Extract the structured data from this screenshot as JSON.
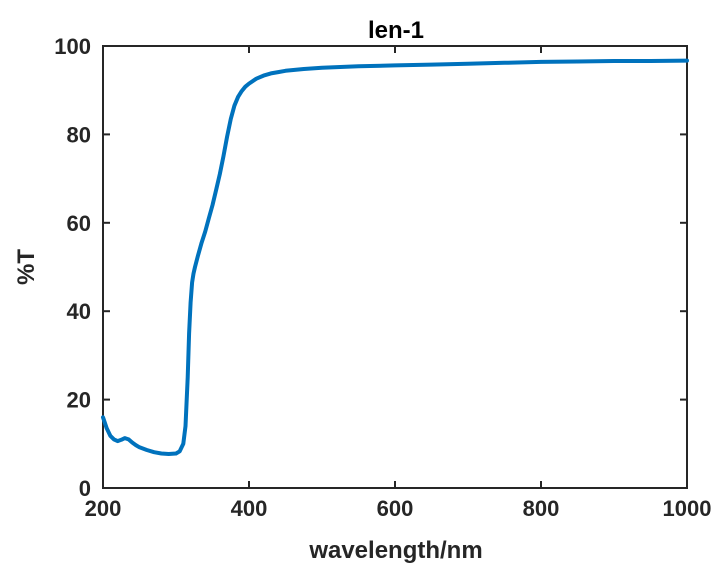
{
  "chart_data": {
    "type": "line",
    "title": "len-1",
    "xlabel": "wavelength/nm",
    "ylabel": "%T",
    "xlim": [
      200,
      1000
    ],
    "ylim": [
      0,
      100
    ],
    "xticks": [
      200,
      400,
      600,
      800,
      1000
    ],
    "yticks": [
      0,
      20,
      40,
      60,
      80,
      100
    ],
    "grid": false,
    "line_color": "#0072BD",
    "series": [
      {
        "x": [
          200,
          205,
          210,
          215,
          220,
          225,
          230,
          235,
          240,
          245,
          250,
          260,
          270,
          280,
          290,
          300,
          305,
          310,
          313,
          316,
          318,
          320,
          322,
          324,
          326,
          330,
          335,
          340,
          345,
          350,
          355,
          360,
          365,
          370,
          375,
          380,
          385,
          390,
          395,
          400,
          410,
          420,
          430,
          440,
          450,
          475,
          500,
          550,
          600,
          650,
          700,
          750,
          800,
          850,
          900,
          950,
          1000
        ],
        "y": [
          16.0,
          13.5,
          11.8,
          11.0,
          10.6,
          10.9,
          11.3,
          11.0,
          10.3,
          9.7,
          9.2,
          8.6,
          8.1,
          7.8,
          7.7,
          7.8,
          8.3,
          10.0,
          14.0,
          25.0,
          35.0,
          42.0,
          46.5,
          48.5,
          50.0,
          52.5,
          55.5,
          58.0,
          61.0,
          64.0,
          67.5,
          71.0,
          75.0,
          79.5,
          83.5,
          86.5,
          88.5,
          89.8,
          90.8,
          91.5,
          92.6,
          93.3,
          93.8,
          94.1,
          94.4,
          94.8,
          95.1,
          95.4,
          95.6,
          95.8,
          96.0,
          96.2,
          96.4,
          96.5,
          96.6,
          96.6,
          96.7
        ]
      }
    ]
  }
}
